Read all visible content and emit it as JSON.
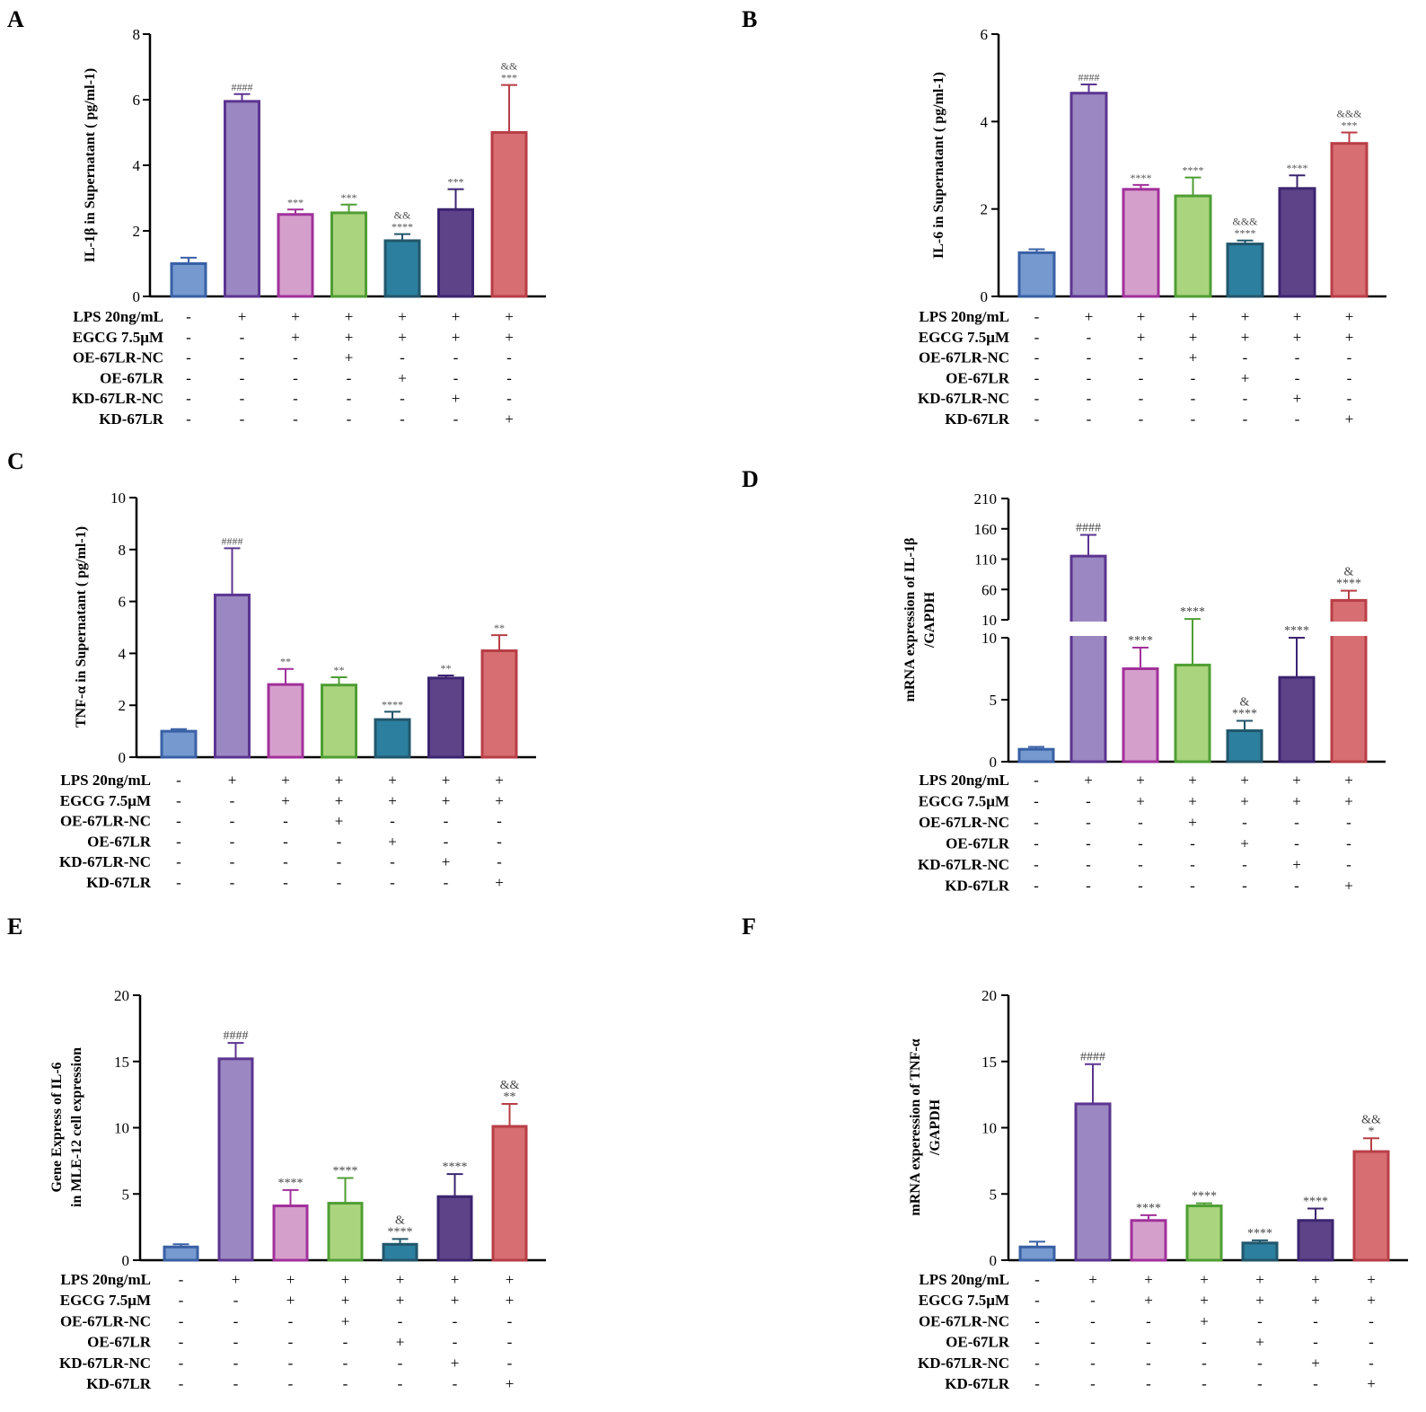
{
  "colors": {
    "bars": [
      "#7699cf",
      "#9b88c2",
      "#d59fcc",
      "#abd47e",
      "#2c7f9e",
      "#5e4389",
      "#d66e72"
    ],
    "edges": [
      "#3860a5",
      "#5c3591",
      "#a1309b",
      "#4f9e34",
      "#22566b",
      "#3c2470",
      "#b83e46"
    ],
    "significance": "#666666"
  },
  "treatment_rows": [
    "LPS 20ng/mL",
    "EGCG 7.5μM",
    "OE-67LR-NC",
    "OE-67LR",
    "KD-67LR-NC",
    "KD-67LR"
  ],
  "chart_data": [
    {
      "panel": "A",
      "type": "bar",
      "ylabel": "IL-1β in Supernatant ( pg/ml-1)",
      "ylim": [
        0,
        8
      ],
      "yticks": [
        0,
        2,
        4,
        6,
        8
      ],
      "values": [
        1.0,
        5.95,
        2.5,
        2.55,
        1.7,
        2.65,
        5.0
      ],
      "errors": [
        0.18,
        0.22,
        0.15,
        0.25,
        0.2,
        0.62,
        1.45
      ],
      "significance": [
        "",
        "####",
        "***",
        "***",
        "&&\n****",
        "***",
        "&&\n***"
      ],
      "table_labels": [
        "LPS  20ng/mL",
        "EGCG 7.5μM",
        "OE-67LR-NC",
        "OE-67LR",
        "KD-67LR-NC",
        "KD-67LR"
      ],
      "table": [
        [
          "-",
          "+",
          "+",
          "+",
          "+",
          "+",
          "+"
        ],
        [
          "-",
          "-",
          "+",
          "+",
          "+",
          "+",
          "+"
        ],
        [
          "-",
          "-",
          "-",
          "+",
          "-",
          "-",
          "-"
        ],
        [
          "-",
          "-",
          "-",
          "-",
          "+",
          "-",
          "-"
        ],
        [
          "-",
          "-",
          "-",
          "-",
          "-",
          "+",
          "-"
        ],
        [
          "-",
          "-",
          "-",
          "-",
          "-",
          "-",
          "+"
        ]
      ]
    },
    {
      "panel": "B",
      "type": "bar",
      "ylabel": "IL-6 in Supernatant ( pg/ml-1)",
      "ylim": [
        0,
        6
      ],
      "yticks": [
        0,
        2,
        4,
        6
      ],
      "values": [
        1.0,
        4.65,
        2.45,
        2.3,
        1.2,
        2.47,
        3.5
      ],
      "errors": [
        0.08,
        0.2,
        0.1,
        0.42,
        0.08,
        0.3,
        0.25
      ],
      "significance": [
        "",
        "####",
        "****",
        "****",
        "&&&\n****",
        "****",
        "&&&\n***"
      ],
      "table_labels": [
        "LPS  20ng/mL",
        "EGCG 7.5μM",
        "OE-67LR-NC",
        "OE-67LR",
        "KD-67LR-NC",
        "KD-67LR"
      ],
      "table": [
        [
          "-",
          "+",
          "+",
          "+",
          "+",
          "+",
          "+"
        ],
        [
          "-",
          "-",
          "+",
          "+",
          "+",
          "+",
          "+"
        ],
        [
          "-",
          "-",
          "-",
          "+",
          "-",
          "-",
          "-"
        ],
        [
          "-",
          "-",
          "-",
          "-",
          "+",
          "-",
          "-"
        ],
        [
          "-",
          "-",
          "-",
          "-",
          "-",
          "+",
          "-"
        ],
        [
          "-",
          "-",
          "-",
          "-",
          "-",
          "-",
          "+"
        ]
      ]
    },
    {
      "panel": "C",
      "type": "bar",
      "ylabel": "TNF-α in Supernatant ( pg/ml-1)",
      "ylim": [
        0,
        10
      ],
      "yticks": [
        0,
        2,
        4,
        6,
        8,
        10
      ],
      "values": [
        1.0,
        6.25,
        2.8,
        2.78,
        1.45,
        3.05,
        4.1
      ],
      "errors": [
        0.08,
        1.8,
        0.6,
        0.3,
        0.3,
        0.1,
        0.6
      ],
      "significance": [
        "",
        "####",
        "**",
        "**",
        "****",
        "**",
        "**"
      ],
      "table_labels": [
        "LPS  20ng/mL",
        "EGCG 7.5μM",
        "OE-67LR-NC",
        "OE-67LR",
        "KD-67LR-NC",
        "KD-67LR"
      ],
      "table": [
        [
          "-",
          "+",
          "+",
          "+",
          "+",
          "+",
          "+"
        ],
        [
          "-",
          "-",
          "+",
          "+",
          "+",
          "+",
          "+"
        ],
        [
          "-",
          "-",
          "-",
          "+",
          "-",
          "-",
          "-"
        ],
        [
          "-",
          "-",
          "-",
          "-",
          "+",
          "-",
          "-"
        ],
        [
          "-",
          "-",
          "-",
          "-",
          "-",
          "+",
          "-"
        ],
        [
          "-",
          "-",
          "-",
          "-",
          "-",
          "-",
          "+"
        ]
      ]
    },
    {
      "panel": "D",
      "type": "bar",
      "ylabel": "mRNA expression of  IL-1β\n/GAPDH",
      "ylim": [
        0,
        210
      ],
      "broken_axis": [
        10,
        10
      ],
      "yticks_lower": [
        0,
        5,
        10
      ],
      "yticks_upper": [
        10,
        60,
        110,
        160,
        210
      ],
      "values": [
        1.0,
        115,
        7.5,
        7.8,
        2.5,
        6.8,
        42
      ],
      "errors": [
        0.2,
        35,
        1.7,
        3.5,
        0.8,
        3.2,
        16
      ],
      "significance": [
        "",
        "####",
        "****",
        "****",
        "&\n****",
        "****",
        "&\n****"
      ],
      "table_labels": [
        "LPS 20ng/mL",
        "EGCG 7.5μM",
        "OE-67LR-NC",
        "OE-67LR",
        "KD-67LR-NC",
        "KD-67LR"
      ],
      "table": [
        [
          "-",
          "+",
          "+",
          "+",
          "+",
          "+",
          "+"
        ],
        [
          "-",
          "-",
          "+",
          "+",
          "+",
          "+",
          "+"
        ],
        [
          "-",
          "-",
          "-",
          "+",
          "-",
          "-",
          "-"
        ],
        [
          "-",
          "-",
          "-",
          "-",
          "+",
          "-",
          "-"
        ],
        [
          "-",
          "-",
          "-",
          "-",
          "-",
          "+",
          "-"
        ],
        [
          "-",
          "-",
          "-",
          "-",
          "-",
          "-",
          "+"
        ]
      ]
    },
    {
      "panel": "E",
      "type": "bar",
      "ylabel": "Gene Express of IL-6\nin MLE-12 cell expression",
      "ylim": [
        0,
        20
      ],
      "yticks": [
        0,
        5,
        10,
        15,
        20
      ],
      "values": [
        1.0,
        15.2,
        4.1,
        4.3,
        1.2,
        4.8,
        10.1
      ],
      "errors": [
        0.2,
        1.2,
        1.2,
        1.9,
        0.4,
        1.7,
        1.7
      ],
      "significance": [
        "",
        "####",
        "****",
        "****",
        "&\n****",
        "****",
        "&&\n**"
      ],
      "table_labels": [
        "LPS 20ng/mL",
        "EGCG  7.5μM",
        "OE-67LR-NC",
        "OE-67LR",
        "KD-67LR-NC",
        "KD-67LR"
      ],
      "table": [
        [
          "-",
          "+",
          "+",
          "+",
          "+",
          "+",
          "+"
        ],
        [
          "-",
          "-",
          "+",
          "+",
          "+",
          "+",
          "+"
        ],
        [
          "-",
          "-",
          "-",
          "+",
          "-",
          "-",
          "-"
        ],
        [
          "-",
          "-",
          "-",
          "-",
          "+",
          "-",
          "-"
        ],
        [
          "-",
          "-",
          "-",
          "-",
          "-",
          "+",
          "-"
        ],
        [
          "-",
          "-",
          "-",
          "-",
          "-",
          "-",
          "+"
        ]
      ]
    },
    {
      "panel": "F",
      "type": "bar",
      "ylabel": "mRNA experession of  TNF-α\n/GAPDH",
      "ylim": [
        0,
        20
      ],
      "yticks": [
        0,
        5,
        10,
        15,
        20
      ],
      "values": [
        1.0,
        11.8,
        3.0,
        4.1,
        1.3,
        3.0,
        8.2
      ],
      "errors": [
        0.4,
        3.0,
        0.4,
        0.2,
        0.2,
        0.9,
        1.0
      ],
      "significance": [
        "",
        "####",
        "****",
        "****",
        "****",
        "****",
        "&&\n*"
      ],
      "table_labels": [
        "LPS 20ng/mL",
        "EGCG 7.5μM",
        "OE-67LR-NC",
        "OE-67LR",
        "KD-67LR-NC",
        "KD-67LR"
      ],
      "table": [
        [
          "-",
          "+",
          "+",
          "+",
          "+",
          "+",
          "+"
        ],
        [
          "-",
          "-",
          "+",
          "+",
          "+",
          "+",
          "+"
        ],
        [
          "-",
          "-",
          "-",
          "+",
          "-",
          "-",
          "-"
        ],
        [
          "-",
          "-",
          "-",
          "-",
          "+",
          "-",
          "-"
        ],
        [
          "-",
          "-",
          "-",
          "-",
          "-",
          "+",
          "-"
        ],
        [
          "-",
          "-",
          "-",
          "-",
          "-",
          "-",
          "+"
        ]
      ]
    }
  ]
}
